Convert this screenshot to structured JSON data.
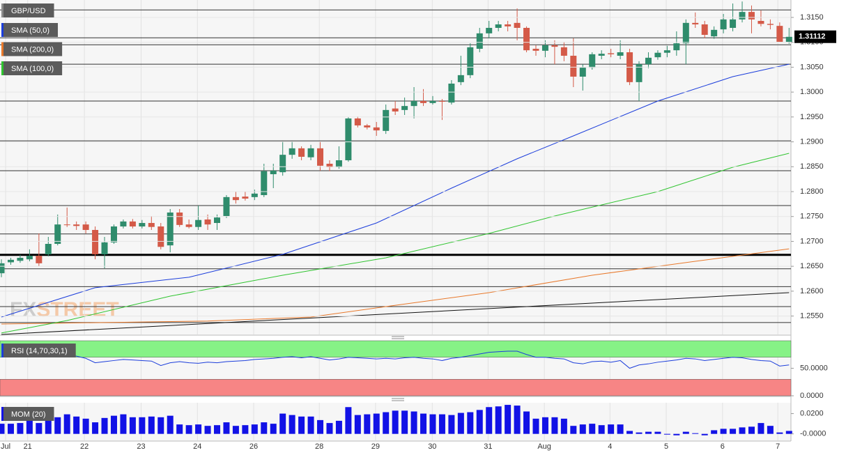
{
  "chart_data": [
    {
      "type": "candlestick",
      "title": "GBP/USD",
      "up_color": "#2f8c6c",
      "down_color": "#d45a48",
      "xlim": [
        -0.15,
        84.2
      ],
      "ylim": [
        1.2513,
        1.3185
      ],
      "yticks": [
        {
          "value": 1.255,
          "label": "1.2550"
        },
        {
          "value": 1.26,
          "label": "1.2600"
        },
        {
          "value": 1.265,
          "label": "1.2650"
        },
        {
          "value": 1.27,
          "label": "1.2700"
        },
        {
          "value": 1.275,
          "label": "1.2750"
        },
        {
          "value": 1.28,
          "label": "1.2800"
        },
        {
          "value": 1.285,
          "label": "1.2850"
        },
        {
          "value": 1.29,
          "label": "1.2900"
        },
        {
          "value": 1.295,
          "label": "1.2950"
        },
        {
          "value": 1.3,
          "label": "1.3000"
        },
        {
          "value": 1.305,
          "label": "1.3050"
        },
        {
          "value": 1.31,
          "label": "1.3100"
        },
        {
          "value": 1.315,
          "label": "1.3150"
        }
      ],
      "grid": true,
      "last_price": 1.31112,
      "levels": [
        1.3165,
        1.3109,
        1.3095,
        1.3056,
        1.2982,
        1.2902,
        1.2842,
        1.2772,
        1.2715,
        1.2673,
        1.2645,
        1.2609,
        1.2569,
        1.2537
      ],
      "bold_levels": [
        1.2673
      ],
      "ohlc": [
        [
          1.2636,
          1.2664,
          1.2628,
          1.2656
        ],
        [
          1.2658,
          1.2667,
          1.2653,
          1.2663
        ],
        [
          1.2661,
          1.2673,
          1.2657,
          1.2667
        ],
        [
          1.2664,
          1.2684,
          1.266,
          1.2671
        ],
        [
          1.2671,
          1.2716,
          1.265,
          1.2656
        ],
        [
          1.2674,
          1.2709,
          1.267,
          1.2695
        ],
        [
          1.2695,
          1.2754,
          1.2692,
          1.2734
        ],
        [
          1.2734,
          1.2768,
          1.2729,
          1.2733
        ],
        [
          1.2734,
          1.274,
          1.2723,
          1.2731
        ],
        [
          1.2734,
          1.274,
          1.2716,
          1.2723
        ],
        [
          1.2723,
          1.273,
          1.2664,
          1.2674
        ],
        [
          1.2674,
          1.2709,
          1.2646,
          1.2698
        ],
        [
          1.2698,
          1.2734,
          1.2695,
          1.273
        ],
        [
          1.273,
          1.2744,
          1.2726,
          1.274
        ],
        [
          1.274,
          1.2745,
          1.2726,
          1.273
        ],
        [
          1.273,
          1.2743,
          1.2726,
          1.2737
        ],
        [
          1.2737,
          1.2751,
          1.2723,
          1.2729
        ],
        [
          1.273,
          1.2737,
          1.2684,
          1.2689
        ],
        [
          1.2692,
          1.2765,
          1.2678,
          1.2758
        ],
        [
          1.2758,
          1.2765,
          1.2729,
          1.2733
        ],
        [
          1.2734,
          1.2744,
          1.2726,
          1.2729
        ],
        [
          1.2729,
          1.2772,
          1.2723,
          1.2743
        ],
        [
          1.2744,
          1.2754,
          1.2723,
          1.2734
        ],
        [
          1.2737,
          1.2754,
          1.2723,
          1.2748
        ],
        [
          1.2751,
          1.2793,
          1.2747,
          1.2789
        ],
        [
          1.2789,
          1.28,
          1.2776,
          1.2783
        ],
        [
          1.279,
          1.28,
          1.2782,
          1.2786
        ],
        [
          1.2789,
          1.2804,
          1.2783,
          1.2796
        ],
        [
          1.2793,
          1.2856,
          1.2789,
          1.2841
        ],
        [
          1.2835,
          1.2856,
          1.2807,
          1.2842
        ],
        [
          1.2839,
          1.2901,
          1.2832,
          1.2874
        ],
        [
          1.2874,
          1.2901,
          1.2866,
          1.2887
        ],
        [
          1.2887,
          1.2891,
          1.2863,
          1.287
        ],
        [
          1.2869,
          1.2894,
          1.2863,
          1.2887
        ],
        [
          1.2887,
          1.2901,
          1.2842,
          1.2852
        ],
        [
          1.2856,
          1.2863,
          1.2841,
          1.2849
        ],
        [
          1.2849,
          1.2891,
          1.2846,
          1.2863
        ],
        [
          1.2863,
          1.295,
          1.286,
          1.2947
        ],
        [
          1.2947,
          1.2951,
          1.2929,
          1.2933
        ],
        [
          1.2933,
          1.2936,
          1.2925,
          1.2929
        ],
        [
          1.2929,
          1.294,
          1.2912,
          1.2923
        ],
        [
          1.2922,
          1.2975,
          1.2916,
          1.2964
        ],
        [
          1.2967,
          1.2982,
          1.2954,
          1.2961
        ],
        [
          1.2964,
          1.2989,
          1.2954,
          1.2972
        ],
        [
          1.2972,
          1.301,
          1.2947,
          1.2982
        ],
        [
          1.2982,
          1.3006,
          1.2972,
          1.2978
        ],
        [
          1.2978,
          1.2992,
          1.2975,
          1.2982
        ],
        [
          1.2982,
          1.2986,
          1.2944,
          1.2981
        ],
        [
          1.2979,
          1.3024,
          1.2975,
          1.3017
        ],
        [
          1.302,
          1.3073,
          1.3014,
          1.3034
        ],
        [
          1.3034,
          1.3098,
          1.3028,
          1.309
        ],
        [
          1.3087,
          1.3129,
          1.308,
          1.3118
        ],
        [
          1.3118,
          1.3143,
          1.3108,
          1.3129
        ],
        [
          1.3129,
          1.3143,
          1.3122,
          1.3136
        ],
        [
          1.3136,
          1.3143,
          1.3122,
          1.3132
        ],
        [
          1.3139,
          1.3168,
          1.3104,
          1.3129
        ],
        [
          1.3129,
          1.3132,
          1.308,
          1.3084
        ],
        [
          1.3087,
          1.3094,
          1.3073,
          1.3083
        ],
        [
          1.3083,
          1.3104,
          1.307,
          1.3094
        ],
        [
          1.3094,
          1.3104,
          1.3056,
          1.3091
        ],
        [
          1.309,
          1.3101,
          1.3062,
          1.3073
        ],
        [
          1.3073,
          1.3108,
          1.301,
          1.3031
        ],
        [
          1.3031,
          1.3056,
          1.3003,
          1.3049
        ],
        [
          1.3049,
          1.308,
          1.3045,
          1.3076
        ],
        [
          1.3073,
          1.3084,
          1.3066,
          1.3077
        ],
        [
          1.3078,
          1.3087,
          1.307,
          1.3076
        ],
        [
          1.3073,
          1.3104,
          1.3066,
          1.308
        ],
        [
          1.308,
          1.3087,
          1.3014,
          1.302
        ],
        [
          1.302,
          1.3062,
          1.2982,
          1.3056
        ],
        [
          1.3056,
          1.308,
          1.3048,
          1.3069
        ],
        [
          1.307,
          1.3084,
          1.3065,
          1.3079
        ],
        [
          1.3079,
          1.3093,
          1.307,
          1.3084
        ],
        [
          1.3084,
          1.3122,
          1.3073,
          1.3098
        ],
        [
          1.3098,
          1.3146,
          1.3056,
          1.3139
        ],
        [
          1.3139,
          1.316,
          1.3129,
          1.3136
        ],
        [
          1.3136,
          1.3143,
          1.3108,
          1.3115
        ],
        [
          1.3112,
          1.3132,
          1.3107,
          1.3125
        ],
        [
          1.3126,
          1.3157,
          1.3118,
          1.3146
        ],
        [
          1.3129,
          1.3178,
          1.3122,
          1.3146
        ],
        [
          1.3146,
          1.3182,
          1.314,
          1.3161
        ],
        [
          1.3161,
          1.3174,
          1.3118,
          1.3146
        ],
        [
          1.3143,
          1.3164,
          1.3132,
          1.3137
        ],
        [
          1.3137,
          1.3146,
          1.3126,
          1.3135
        ],
        [
          1.3133,
          1.314,
          1.3101,
          1.3101
        ],
        [
          1.3101,
          1.3129,
          1.3097,
          1.3111
        ]
      ],
      "series": [
        {
          "name": "SMA (50,0)",
          "color": "#1b3ddb",
          "x": [
            0,
            10,
            20,
            30,
            40,
            48,
            55,
            61,
            70,
            78,
            84
          ],
          "values": [
            1.2548,
            1.2607,
            1.2628,
            1.2674,
            1.2737,
            1.2807,
            1.2866,
            1.2912,
            1.2982,
            1.3031,
            1.3056
          ]
        },
        {
          "name": "SMA (200,0)",
          "color": "#e8782a",
          "x": [
            0,
            22,
            33,
            41,
            52,
            63,
            74,
            84
          ],
          "values": [
            1.2534,
            1.254,
            1.2548,
            1.2569,
            1.2597,
            1.2632,
            1.266,
            1.2685
          ]
        },
        {
          "name": "SMA (100,0)",
          "color": "#2fc42f",
          "x": [
            0,
            7,
            18,
            30,
            41,
            52,
            59,
            70,
            78,
            84
          ],
          "values": [
            1.2516,
            1.2541,
            1.259,
            1.2632,
            1.2667,
            1.2716,
            1.2751,
            1.28,
            1.2849,
            1.2877
          ]
        },
        {
          "color": "#111111",
          "x": [
            0,
            84
          ],
          "values": [
            1.2513,
            1.2597
          ]
        }
      ],
      "watermark": [
        "FX",
        "STREET"
      ]
    },
    {
      "type": "line",
      "title": "RSI (14,70,30,1)",
      "color": "#1b3ddb",
      "xlim": [
        -0.15,
        84.2
      ],
      "ylim": [
        0,
        100
      ],
      "yticks": [
        {
          "value": 0,
          "label": "0.0000"
        },
        {
          "value": 50,
          "label": "50.0000"
        }
      ],
      "zones": [
        {
          "from": 70,
          "to": 100,
          "color": "#86f286"
        },
        {
          "from": 0,
          "to": 30,
          "color": "#f78585"
        }
      ],
      "values": [
        72,
        74,
        76,
        75,
        73,
        74,
        76,
        75,
        72,
        68,
        60,
        62,
        64,
        66,
        65,
        64,
        63,
        55,
        60,
        62,
        60,
        59,
        61,
        60,
        62,
        63,
        64,
        66,
        67,
        68,
        70,
        71,
        69,
        71,
        68,
        65,
        67,
        70,
        69,
        68,
        67,
        68,
        67,
        69,
        70,
        68,
        67,
        64,
        68,
        70,
        73,
        76,
        79,
        80,
        81,
        81,
        75,
        70,
        70,
        68,
        67,
        60,
        58,
        62,
        63,
        61,
        64,
        50,
        56,
        58,
        61,
        63,
        65,
        68,
        67,
        64,
        66,
        68,
        70,
        69,
        66,
        64,
        63,
        54,
        56
      ]
    },
    {
      "type": "bar",
      "title": "MOM (20)",
      "color": "#1212e6",
      "xlim": [
        -0.15,
        84.2
      ],
      "ylim": [
        -0.0064,
        0.0307
      ],
      "yticks": [
        {
          "value": 0,
          "label": "-0.0000"
        },
        {
          "value": 0.02,
          "label": "0.0200"
        }
      ],
      "xticks": [
        {
          "value": 0.45,
          "label": "Jul"
        },
        {
          "value": 2.8,
          "label": "21"
        },
        {
          "value": 8.85,
          "label": "22"
        },
        {
          "value": 14.9,
          "label": "23"
        },
        {
          "value": 20.9,
          "label": "24"
        },
        {
          "value": 26.9,
          "label": "26"
        },
        {
          "value": 33.9,
          "label": "28"
        },
        {
          "value": 39.9,
          "label": "29"
        },
        {
          "value": 45.95,
          "label": "30"
        },
        {
          "value": 51.9,
          "label": "31"
        },
        {
          "value": 57.9,
          "label": "Aug"
        },
        {
          "value": 64.9,
          "label": "4"
        },
        {
          "value": 70.9,
          "label": "5"
        },
        {
          "value": 76.9,
          "label": "6"
        },
        {
          "value": 82.8,
          "label": "7"
        }
      ],
      "values": [
        0.01,
        0.01,
        0.0107,
        0.0129,
        0.0107,
        0.0129,
        0.0164,
        0.0193,
        0.0171,
        0.015,
        0.0114,
        0.0157,
        0.0179,
        0.0193,
        0.0164,
        0.0164,
        0.0171,
        0.0164,
        0.0179,
        0.0093,
        0.0086,
        0.0093,
        0.0079,
        0.0086,
        0.0114,
        0.0079,
        0.0086,
        0.0093,
        0.0114,
        0.01,
        0.02,
        0.0186,
        0.0171,
        0.0171,
        0.0136,
        0.0107,
        0.0129,
        0.0264,
        0.0186,
        0.0193,
        0.02,
        0.0214,
        0.0229,
        0.0229,
        0.0221,
        0.02,
        0.0193,
        0.0193,
        0.0186,
        0.0207,
        0.0214,
        0.0236,
        0.0264,
        0.0271,
        0.0286,
        0.0279,
        0.0221,
        0.015,
        0.0164,
        0.0164,
        0.015,
        0.0079,
        0.0093,
        0.01,
        0.0086,
        0.0093,
        0.0093,
        0.0029,
        0.0014,
        0.0021,
        0.0021,
        -0.0007,
        -0.0014,
        0.0021,
        0.0007,
        -0.0014,
        0.0036,
        0.005,
        0.005,
        0.0064,
        0.0071,
        0.0107,
        0.0079,
        0.0014,
        0.0029
      ]
    }
  ]
}
